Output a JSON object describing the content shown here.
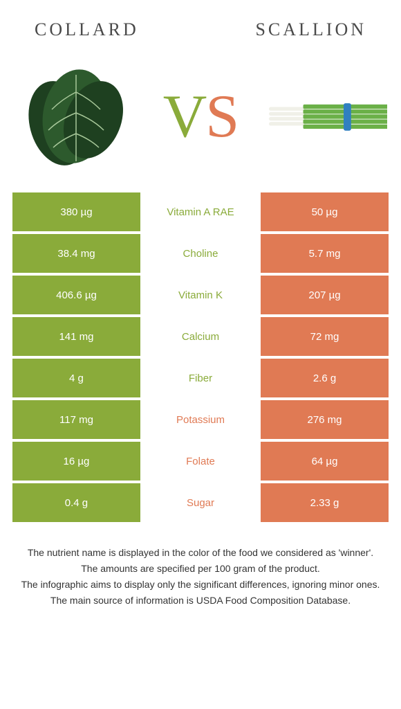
{
  "header": {
    "left_title": "COLLARD",
    "right_title": "SCALLION"
  },
  "vs": {
    "v": "V",
    "s": "S"
  },
  "colors": {
    "left": "#8aab3a",
    "right": "#e07a54",
    "text": "#333333"
  },
  "rows": [
    {
      "left": "380 µg",
      "nutrient": "Vitamin A RAE",
      "right": "50 µg",
      "winner": "left"
    },
    {
      "left": "38.4 mg",
      "nutrient": "Choline",
      "right": "5.7 mg",
      "winner": "left"
    },
    {
      "left": "406.6 µg",
      "nutrient": "Vitamin K",
      "right": "207 µg",
      "winner": "left"
    },
    {
      "left": "141 mg",
      "nutrient": "Calcium",
      "right": "72 mg",
      "winner": "left"
    },
    {
      "left": "4 g",
      "nutrient": "Fiber",
      "right": "2.6 g",
      "winner": "left"
    },
    {
      "left": "117 mg",
      "nutrient": "Potassium",
      "right": "276 mg",
      "winner": "right"
    },
    {
      "left": "16 µg",
      "nutrient": "Folate",
      "right": "64 µg",
      "winner": "right"
    },
    {
      "left": "0.4 g",
      "nutrient": "Sugar",
      "right": "2.33 g",
      "winner": "right"
    }
  ],
  "footer": {
    "line1": "The nutrient name is displayed in the color of the food we considered as 'winner'.",
    "line2": "The amounts are specified per 100 gram of the product.",
    "line3": "The infographic aims to display only the significant differences, ignoring minor ones.",
    "line4": "The main source of information is USDA Food Composition Database."
  }
}
